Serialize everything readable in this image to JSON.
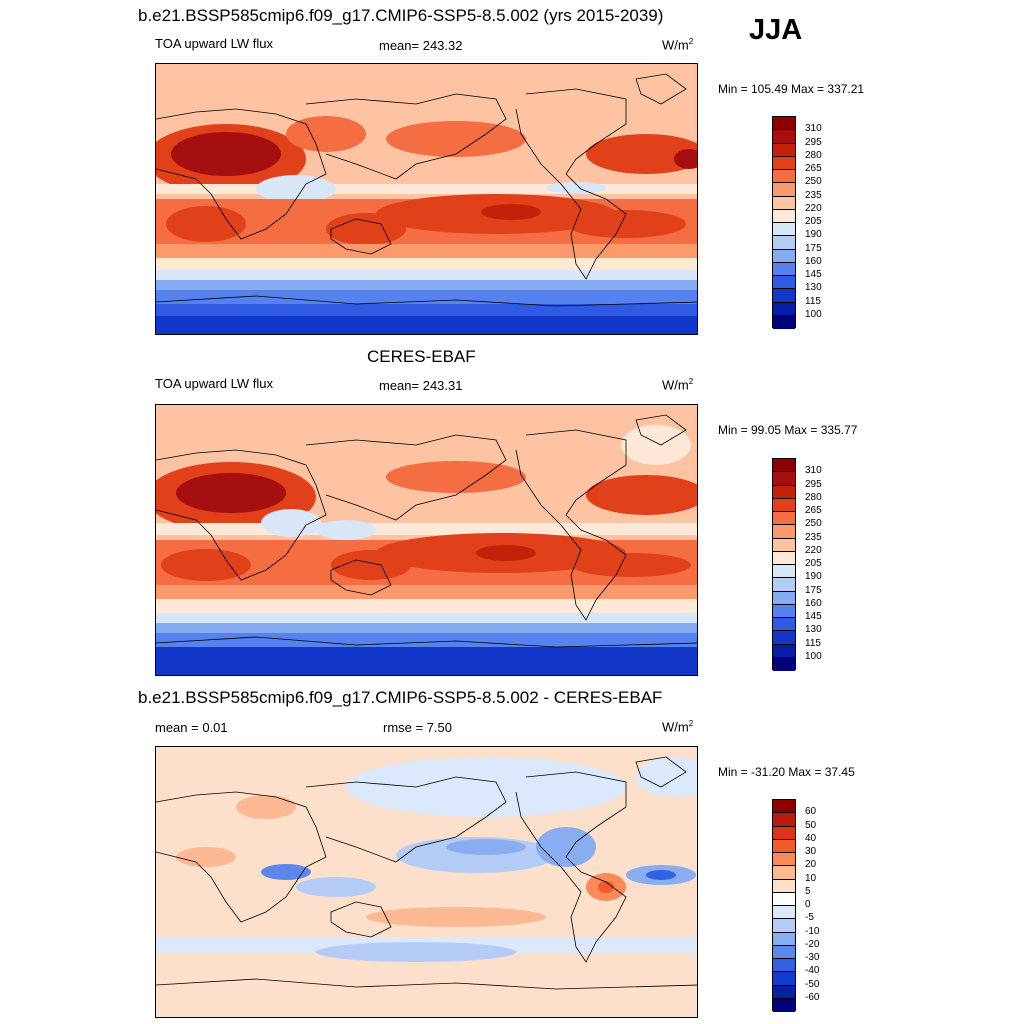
{
  "season": "JJA",
  "panels": [
    {
      "title": "b.e21.BSSP585cmip6.f09_g17.CMIP6-SSP5-8.5.002 (yrs 2015-2039)",
      "left_label": "TOA upward LW flux",
      "center_label": "mean= 243.32",
      "units_base": "W/m",
      "units_exp": "2",
      "minmax": "Min = 105.49 Max = 337.21",
      "colorbar_labels": [
        "310",
        "295",
        "280",
        "265",
        "250",
        "235",
        "220",
        "205",
        "190",
        "175",
        "160",
        "145",
        "130",
        "115",
        "100"
      ]
    },
    {
      "title": "CERES-EBAF",
      "left_label": "TOA upward LW flux",
      "center_label": "mean= 243.31",
      "units_base": "W/m",
      "units_exp": "2",
      "minmax": "Min =  99.05 Max = 335.77",
      "colorbar_labels": [
        "310",
        "295",
        "280",
        "265",
        "250",
        "235",
        "220",
        "205",
        "190",
        "175",
        "160",
        "145",
        "130",
        "115",
        "100"
      ]
    },
    {
      "title": "b.e21.BSSP585cmip6.f09_g17.CMIP6-SSP5-8.5.002 - CERES-EBAF",
      "left_label": "mean =   0.01",
      "center_label": "rmse =   7.50",
      "units_base": "W/m",
      "units_exp": "2",
      "minmax": "Min = -31.20 Max =  37.45",
      "colorbar_labels": [
        "60",
        "50",
        "40",
        "30",
        "20",
        "10",
        "5",
        "0",
        "-5",
        "-10",
        "-20",
        "-30",
        "-40",
        "-50",
        "-60"
      ]
    }
  ],
  "colors": {
    "abs_scale": [
      "#8b0000",
      "#a50f0f",
      "#c42208",
      "#e0401a",
      "#f46d43",
      "#fc9a6e",
      "#fdc3a2",
      "#fee9d8",
      "#d8e6f8",
      "#b3cdf5",
      "#86acf2",
      "#5682ee",
      "#2f5be4",
      "#1337c8",
      "#0a1da6",
      "#00007a"
    ],
    "diff_scale": [
      "#8b0000",
      "#b81a0c",
      "#dc3415",
      "#f05a2c",
      "#fa8a5a",
      "#fdb894",
      "#fde0cc",
      "#ffffff",
      "#dce8fb",
      "#b5cdf6",
      "#8aadf1",
      "#5d87ec",
      "#3461e2",
      "#143ccc",
      "#0a209f",
      "#00007a"
    ]
  }
}
